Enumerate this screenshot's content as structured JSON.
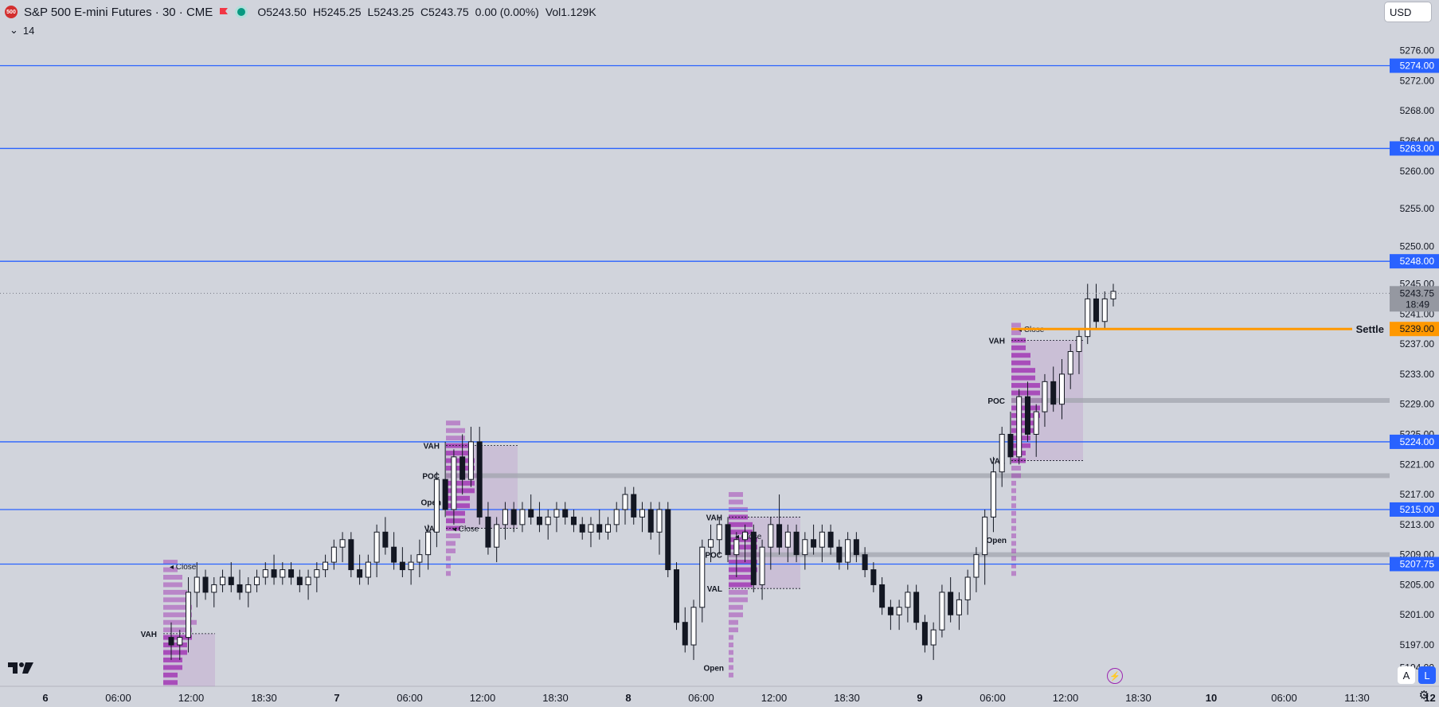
{
  "header": {
    "symbol_badge": "500",
    "title": "S&P 500 E-mini Futures · 30 · CME",
    "open": "O5243.50",
    "high": "H5245.25",
    "low": "L5243.25",
    "close": "C5243.75",
    "change": "0.00 (0.00%)",
    "volume": "Vol1.129K",
    "indicator_value": "14",
    "currency": "USD"
  },
  "controls": {
    "auto": "A",
    "log": "L"
  },
  "chart_data": {
    "type": "candlestick",
    "colors": {
      "background": "#d1d4dc",
      "level_line": "#2962ff",
      "settle": "#ff9800",
      "profile": "#9c27b0",
      "poc_band": "#a0a3ab"
    },
    "ylim": [
      5191.5,
      5278.5
    ],
    "y_ticks": [
      "5276.00",
      "5272.00",
      "5268.00",
      "5264.00",
      "5260.00",
      "5255.00",
      "5250.00",
      "5245.00",
      "5241.00",
      "5237.00",
      "5233.00",
      "5229.00",
      "5225.00",
      "5221.00",
      "5217.00",
      "5213.00",
      "5209.00",
      "5205.00",
      "5201.00",
      "5197.00",
      "5194.00"
    ],
    "x_ticks": [
      "6",
      "06:00",
      "12:00",
      "18:30",
      "7",
      "06:00",
      "12:00",
      "18:30",
      "8",
      "06:00",
      "12:00",
      "18:30",
      "9",
      "06:00",
      "12:00",
      "18:30",
      "10",
      "06:00",
      "11:30",
      "12"
    ],
    "horizontal_levels": [
      {
        "label": "5274.00",
        "value": 5274.0
      },
      {
        "label": "5263.00",
        "value": 5263.0
      },
      {
        "label": "5248.00",
        "value": 5248.0
      },
      {
        "label": "5224.00",
        "value": 5224.0
      },
      {
        "label": "5215.00",
        "value": 5215.0
      },
      {
        "label": "5207.75",
        "value": 5207.75
      }
    ],
    "settle": {
      "label": "Settle",
      "value_label": "5239.00",
      "value": 5239.0
    },
    "last_price": {
      "label": "5243.75",
      "value": 5243.75,
      "countdown": "18:49"
    },
    "profile_labels": {
      "vah": "VAH",
      "poc": "POC",
      "val": "VAL",
      "open": "Open",
      "close": "Close"
    },
    "profiles": [
      {
        "session": "6",
        "vah": 5198.5,
        "close": 5207.5,
        "top": 5208.5,
        "bottom": 5191.5
      },
      {
        "session": "7",
        "vah": 5223.5,
        "poc": 5219.5,
        "val": 5212.5,
        "open": 5216.0,
        "close": 5212.5,
        "top": 5226.5,
        "bottom": 5206.0
      },
      {
        "session": "8",
        "vah": 5214.0,
        "poc": 5209.0,
        "val": 5204.5,
        "open": 5194.0,
        "close": 5211.5,
        "top": 5217.5,
        "bottom": 5192.5
      },
      {
        "session": "9",
        "vah": 5237.5,
        "poc": 5229.5,
        "val": 5221.5,
        "open": 5211.0,
        "close": 5239.0,
        "top": 5240.0,
        "bottom": 5206.0
      }
    ],
    "candles": [
      [
        5198,
        5200,
        5195,
        5197
      ],
      [
        5197,
        5199,
        5195,
        5198
      ],
      [
        5198,
        5206,
        5196,
        5204
      ],
      [
        5204,
        5208,
        5202,
        5206
      ],
      [
        5206,
        5207,
        5203,
        5204
      ],
      [
        5204,
        5206,
        5202,
        5205
      ],
      [
        5205,
        5207,
        5204,
        5206
      ],
      [
        5206,
        5208,
        5204,
        5205
      ],
      [
        5205,
        5207,
        5203,
        5204
      ],
      [
        5204,
        5206,
        5202,
        5205
      ],
      [
        5205,
        5207,
        5204,
        5206
      ],
      [
        5206,
        5208,
        5205,
        5207
      ],
      [
        5207,
        5209,
        5205,
        5206
      ],
      [
        5206,
        5208,
        5205,
        5207
      ],
      [
        5207,
        5208,
        5205,
        5206
      ],
      [
        5206,
        5207,
        5204,
        5205
      ],
      [
        5205,
        5207,
        5203,
        5206
      ],
      [
        5206,
        5208,
        5204,
        5207
      ],
      [
        5207,
        5209,
        5206,
        5208
      ],
      [
        5208,
        5211,
        5207,
        5210
      ],
      [
        5210,
        5212,
        5208,
        5211
      ],
      [
        5211,
        5212,
        5206,
        5207
      ],
      [
        5207,
        5209,
        5205,
        5206
      ],
      [
        5206,
        5209,
        5205,
        5208
      ],
      [
        5208,
        5213,
        5206,
        5212
      ],
      [
        5212,
        5214,
        5209,
        5210
      ],
      [
        5210,
        5212,
        5207,
        5208
      ],
      [
        5208,
        5210,
        5206,
        5207
      ],
      [
        5207,
        5209,
        5205,
        5208
      ],
      [
        5208,
        5211,
        5206,
        5209
      ],
      [
        5209,
        5213,
        5207,
        5212
      ],
      [
        5212,
        5220,
        5210,
        5219
      ],
      [
        5219,
        5224,
        5214,
        5215
      ],
      [
        5215,
        5223,
        5213,
        5222
      ],
      [
        5222,
        5225,
        5217,
        5219
      ],
      [
        5219,
        5226,
        5218,
        5224
      ],
      [
        5224,
        5226,
        5213,
        5214
      ],
      [
        5214,
        5216,
        5209,
        5210
      ],
      [
        5210,
        5214,
        5208,
        5213
      ],
      [
        5213,
        5216,
        5211,
        5215
      ],
      [
        5215,
        5216,
        5212,
        5213
      ],
      [
        5213,
        5216,
        5212,
        5215
      ],
      [
        5215,
        5217,
        5213,
        5214
      ],
      [
        5214,
        5216,
        5212,
        5213
      ],
      [
        5213,
        5215,
        5211,
        5214
      ],
      [
        5214,
        5216,
        5212,
        5215
      ],
      [
        5215,
        5216,
        5213,
        5214
      ],
      [
        5214,
        5215,
        5212,
        5213
      ],
      [
        5213,
        5214,
        5211,
        5212
      ],
      [
        5212,
        5214,
        5210,
        5213
      ],
      [
        5213,
        5215,
        5211,
        5212
      ],
      [
        5212,
        5214,
        5211,
        5213
      ],
      [
        5213,
        5216,
        5212,
        5215
      ],
      [
        5215,
        5218,
        5213,
        5217
      ],
      [
        5217,
        5218,
        5213,
        5214
      ],
      [
        5214,
        5216,
        5212,
        5215
      ],
      [
        5215,
        5216,
        5211,
        5212
      ],
      [
        5212,
        5216,
        5209,
        5215
      ],
      [
        5215,
        5216,
        5206,
        5207
      ],
      [
        5207,
        5208,
        5199,
        5200
      ],
      [
        5200,
        5202,
        5196,
        5197
      ],
      [
        5197,
        5203,
        5195,
        5202
      ],
      [
        5202,
        5211,
        5200,
        5210
      ],
      [
        5210,
        5213,
        5208,
        5211
      ],
      [
        5211,
        5214,
        5209,
        5213
      ],
      [
        5213,
        5214,
        5208,
        5209
      ],
      [
        5209,
        5212,
        5206,
        5211
      ],
      [
        5211,
        5213,
        5208,
        5212
      ],
      [
        5212,
        5213,
        5204,
        5205
      ],
      [
        5205,
        5211,
        5203,
        5210
      ],
      [
        5210,
        5214,
        5207,
        5213
      ],
      [
        5213,
        5217,
        5209,
        5210
      ],
      [
        5210,
        5213,
        5208,
        5212
      ],
      [
        5212,
        5213,
        5208,
        5209
      ],
      [
        5209,
        5212,
        5207,
        5211
      ],
      [
        5211,
        5213,
        5209,
        5210
      ],
      [
        5210,
        5213,
        5208,
        5212
      ],
      [
        5212,
        5213,
        5209,
        5210
      ],
      [
        5210,
        5211,
        5207,
        5208
      ],
      [
        5208,
        5212,
        5207,
        5211
      ],
      [
        5211,
        5212,
        5208,
        5209
      ],
      [
        5209,
        5210,
        5206,
        5207
      ],
      [
        5207,
        5208,
        5204,
        5205
      ],
      [
        5205,
        5206,
        5201,
        5202
      ],
      [
        5202,
        5203,
        5199,
        5201
      ],
      [
        5201,
        5203,
        5199,
        5202
      ],
      [
        5202,
        5205,
        5200,
        5204
      ],
      [
        5204,
        5205,
        5199,
        5200
      ],
      [
        5200,
        5201,
        5196,
        5197
      ],
      [
        5197,
        5200,
        5195,
        5199
      ],
      [
        5199,
        5205,
        5198,
        5204
      ],
      [
        5204,
        5206,
        5200,
        5201
      ],
      [
        5201,
        5204,
        5199,
        5203
      ],
      [
        5203,
        5207,
        5201,
        5206
      ],
      [
        5206,
        5210,
        5204,
        5209
      ],
      [
        5209,
        5215,
        5205,
        5214
      ],
      [
        5214,
        5222,
        5212,
        5220
      ],
      [
        5220,
        5226,
        5218,
        5225
      ],
      [
        5225,
        5228,
        5221,
        5222
      ],
      [
        5222,
        5231,
        5221,
        5230
      ],
      [
        5230,
        5232,
        5224,
        5225
      ],
      [
        5225,
        5229,
        5222,
        5228
      ],
      [
        5228,
        5233,
        5226,
        5232
      ],
      [
        5232,
        5234,
        5228,
        5229
      ],
      [
        5229,
        5235,
        5227,
        5233
      ],
      [
        5233,
        5237,
        5231,
        5236
      ],
      [
        5236,
        5239,
        5233,
        5238
      ],
      [
        5238,
        5245,
        5237,
        5243
      ],
      [
        5243,
        5245,
        5239,
        5240
      ],
      [
        5240,
        5244,
        5239,
        5243
      ],
      [
        5243,
        5245,
        5242,
        5244
      ]
    ]
  }
}
